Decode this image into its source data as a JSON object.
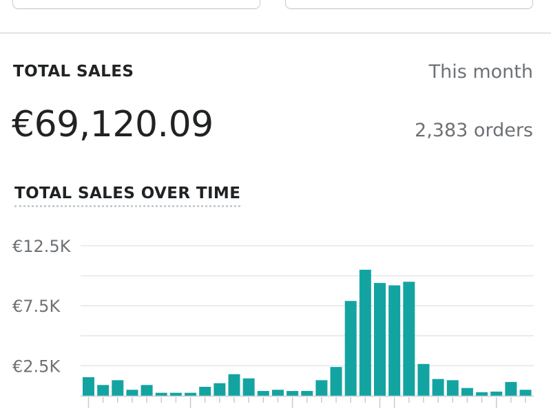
{
  "header": {
    "title": "TOTAL SALES",
    "period": "This month",
    "amount": "€69,120.09",
    "orders": "2,383 orders"
  },
  "chart_data": {
    "type": "bar",
    "title": "TOTAL SALES OVER TIME",
    "xlabel": "",
    "ylabel": "",
    "ylim": [
      0,
      12500
    ],
    "y_ticks": [
      {
        "value": 2500,
        "label": "€2.5K"
      },
      {
        "value": 7500,
        "label": "€7.5K"
      },
      {
        "value": 12500,
        "label": "€12.5K"
      }
    ],
    "gridlines": [
      2500,
      5000,
      7500,
      10000,
      12500
    ],
    "grid": true,
    "color": "#13a4a2",
    "values": [
      1550,
      900,
      1300,
      500,
      900,
      250,
      250,
      250,
      750,
      1050,
      1800,
      1450,
      400,
      500,
      400,
      400,
      1300,
      2400,
      7900,
      10500,
      9400,
      9200,
      9500,
      2650,
      1400,
      1300,
      650,
      300,
      350,
      1150,
      500
    ]
  }
}
